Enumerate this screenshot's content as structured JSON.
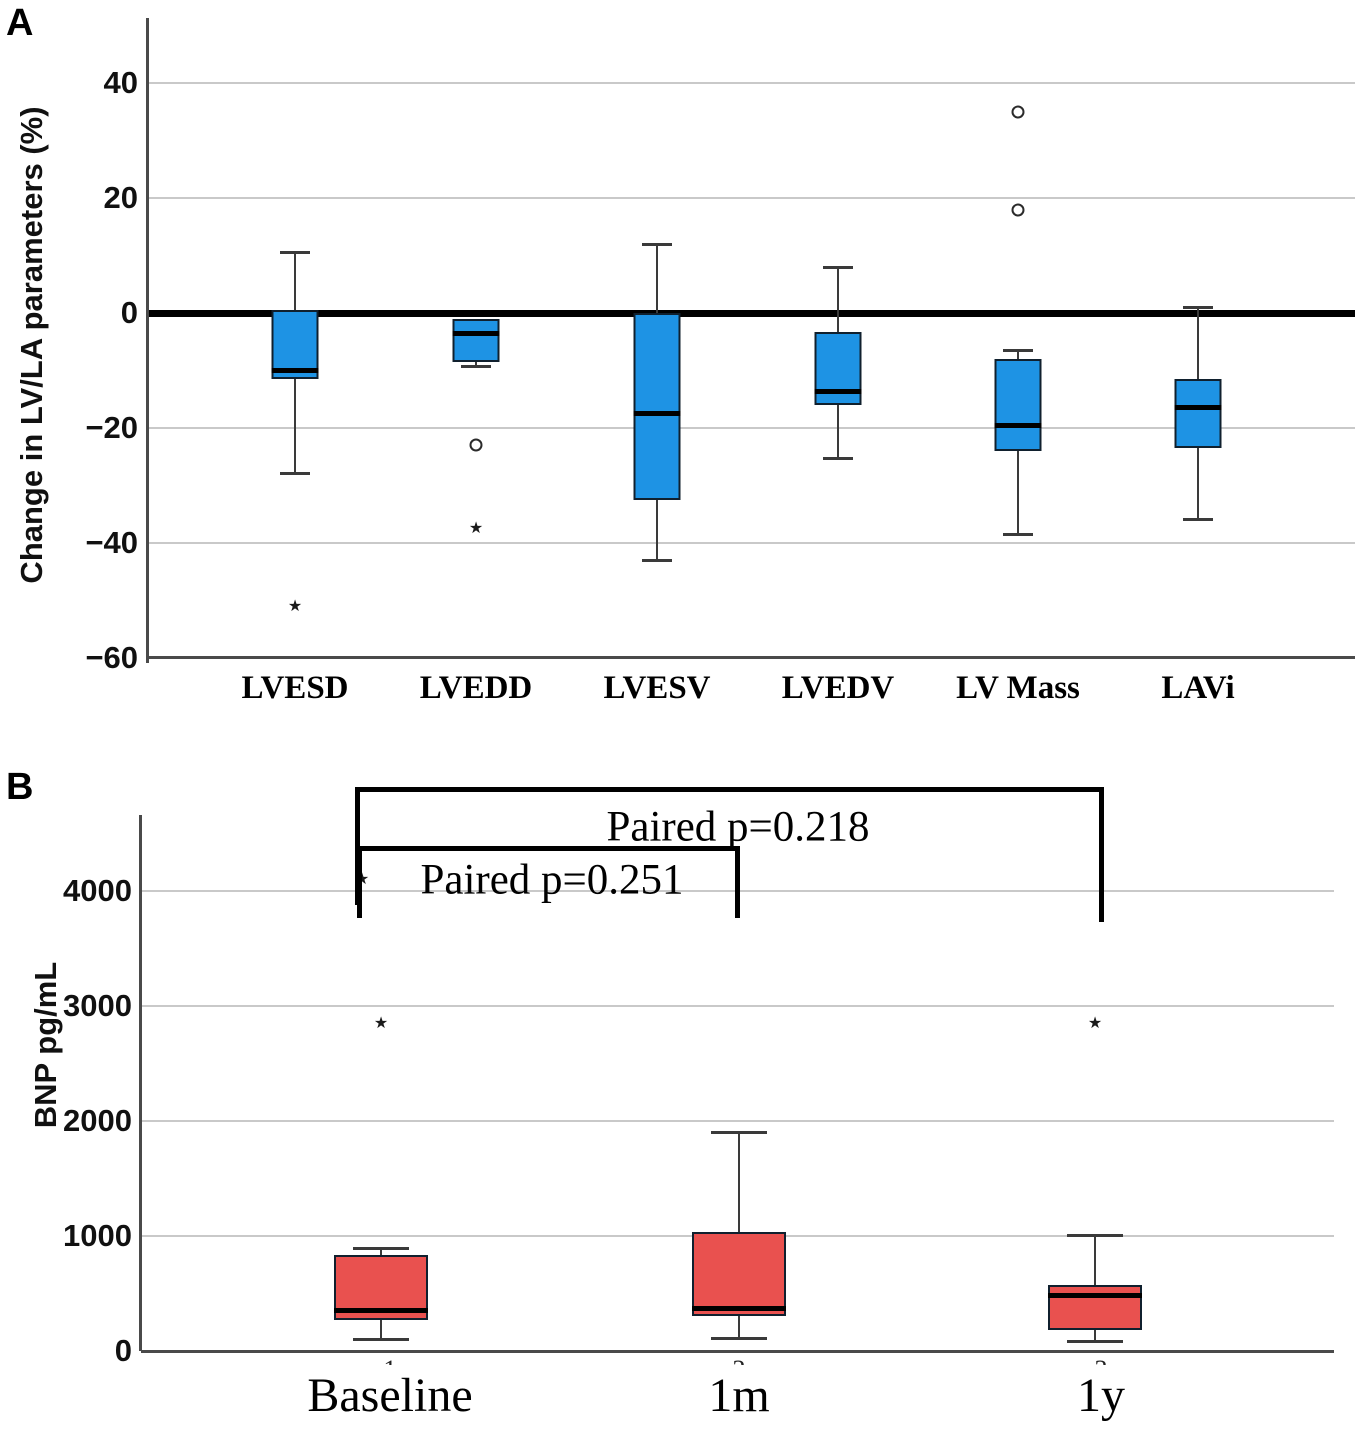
{
  "labels": {
    "panel_a": "A",
    "panel_b": "B"
  },
  "chart_data": [
    {
      "type": "box",
      "panel": "A",
      "ylabel": "Change in LV/LA parameters  (%)",
      "unit": "%",
      "grid": true,
      "zero_reference_line": true,
      "box_color": "#1E93E4",
      "y_ticks": [
        40,
        20,
        0,
        -20,
        -40,
        -60
      ],
      "ylim": [
        -62,
        52
      ],
      "categories": [
        "LVESD",
        "LVEDD",
        "LVESV",
        "LVEDV",
        "LV Mass",
        "LAVi"
      ],
      "boxes": [
        {
          "category": "LVESD",
          "whisker_high": 10.5,
          "q3": 0.5,
          "median": -10,
          "q1": -11.5,
          "whisker_low": -28,
          "outliers": [
            {
              "shape": "star",
              "value": -51
            }
          ]
        },
        {
          "category": "LVEDD",
          "whisker_high": -1,
          "q3": -1,
          "median": -3.5,
          "q1": -8.5,
          "whisker_low": -9.3,
          "outliers": [
            {
              "shape": "circle",
              "value": -23
            },
            {
              "shape": "star",
              "value": -37.5
            }
          ]
        },
        {
          "category": "LVESV",
          "whisker_high": 12,
          "q3": 0,
          "median": -17.5,
          "q1": -32.5,
          "whisker_low": -43,
          "outliers": []
        },
        {
          "category": "LVEDV",
          "whisker_high": 8,
          "q3": -3.3,
          "median": -13.7,
          "q1": -16,
          "whisker_low": -25.3,
          "outliers": []
        },
        {
          "category": "LV Mass",
          "whisker_high": -6.5,
          "q3": -8,
          "median": -19.5,
          "q1": -24,
          "whisker_low": -38.5,
          "outliers": [
            {
              "shape": "circle",
              "value": 35
            },
            {
              "shape": "circle",
              "value": 18
            }
          ]
        },
        {
          "category": "LAVi",
          "whisker_high": 1,
          "q3": -11.5,
          "median": -16.5,
          "q1": -23.5,
          "whisker_low": -36,
          "outliers": []
        }
      ]
    },
    {
      "type": "box",
      "panel": "B",
      "ylabel": "BNP  pg/mL",
      "unit": "pg/mL",
      "grid": true,
      "box_color": "#E9514F",
      "y_ticks": [
        4000,
        3000,
        2000,
        1000,
        0
      ],
      "ylim": [
        0,
        4650
      ],
      "categories": [
        "Baseline",
        "1m",
        "1y"
      ],
      "category_ticks": [
        "1",
        "2",
        "3"
      ],
      "boxes": [
        {
          "category": "Baseline",
          "whisker_high": 890,
          "q3": 830,
          "median": 350,
          "q1": 270,
          "whisker_low": 100,
          "outliers": [
            {
              "shape": "star",
              "value": 4100,
              "dx": -19
            },
            {
              "shape": "star",
              "value": 2850
            }
          ]
        },
        {
          "category": "1m",
          "whisker_high": 1900,
          "q3": 1030,
          "median": 370,
          "q1": 300,
          "whisker_low": 110,
          "outliers": []
        },
        {
          "category": "1y",
          "whisker_high": 1000,
          "q3": 570,
          "median": 480,
          "q1": 185,
          "whisker_low": 80,
          "outliers": [
            {
              "shape": "star",
              "value": 2850
            }
          ]
        }
      ],
      "annotations": [
        {
          "kind": "bracket",
          "from_category": "Baseline",
          "to_category": "1y",
          "label": "Paired p=0.218"
        },
        {
          "kind": "bracket",
          "from_category": "Baseline",
          "to_category": "1m",
          "label": "Paired p=0.251"
        }
      ]
    }
  ]
}
